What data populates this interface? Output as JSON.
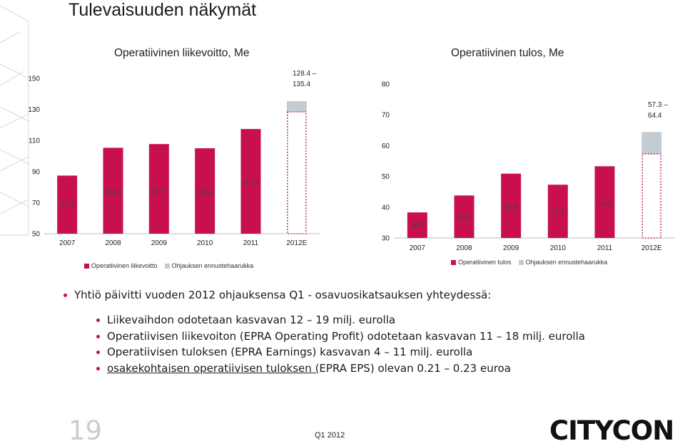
{
  "page": {
    "title": "Tulevaisuuden näkymät",
    "page_number": "19",
    "footer": "Q1 2012",
    "logo_text": "CITYCON"
  },
  "colors": {
    "bar": "#c8104c",
    "guidance": "#c3ccd2",
    "bullet": "#c8104c"
  },
  "chart_data": [
    {
      "type": "bar",
      "title": "Operatiivinen liikevoitto, Me",
      "categories": [
        "2007",
        "2008",
        "2009",
        "2010",
        "2011",
        "2012E"
      ],
      "series": [
        {
          "name": "Operatiivinen liikevoitto",
          "values": [
            87.4,
            105.3,
            107.7,
            105.0,
            117.4,
            128.4
          ]
        },
        {
          "name": "Ohjauksen ennustehaarukka",
          "values": [
            null,
            null,
            null,
            null,
            null,
            135.4
          ]
        }
      ],
      "data_labels": [
        "87,4",
        "105,3",
        "107,7",
        "105,0",
        "117,4",
        ""
      ],
      "guidance_label": "128.4 – 135.4",
      "yticks": [
        "50",
        "70",
        "90",
        "110",
        "130",
        "150"
      ],
      "ylim": [
        50,
        150
      ],
      "legend_position": "bottom"
    },
    {
      "type": "bar",
      "title": "Operatiivinen tulos, Me",
      "categories": [
        "2007",
        "2008",
        "2009",
        "2010",
        "2011",
        "2012E"
      ],
      "series": [
        {
          "name": "Operatiivinen tulos",
          "values": [
            38.3,
            43.8,
            50.9,
            47.3,
            53.3,
            57.3
          ]
        },
        {
          "name": "Ohjauksen ennustehaarukka",
          "values": [
            null,
            null,
            null,
            null,
            null,
            64.4
          ]
        }
      ],
      "data_labels": [
        "38,3",
        "43,8",
        "50,9",
        "47,3",
        "53,3",
        ""
      ],
      "guidance_label": "57.3 – 64.4",
      "yticks": [
        "30",
        "40",
        "50",
        "60",
        "70",
        "80"
      ],
      "ylim": [
        30,
        80
      ],
      "legend_position": "bottom"
    }
  ],
  "bullets": {
    "main": "Yhtiö päivitti vuoden 2012 ohjauksensa Q1 - osavuosikatsauksen yhteydessä:",
    "items": [
      "Liikevaihdon odotetaan kasvavan 12 – 19 milj. eurolla",
      "Operatiivisen liikevoiton (EPRA Operating Profit) odotetaan kasvavan 11 – 18 milj. eurolla",
      "Operatiivisen tuloksen (EPRA Earnings) kasvavan 4 – 11 milj. eurolla"
    ],
    "last_underlined": "osakekohtaisen operatiivisen tuloksen (",
    "last_rest": "EPRA EPS) olevan 0.21 – 0.23 euroa"
  }
}
